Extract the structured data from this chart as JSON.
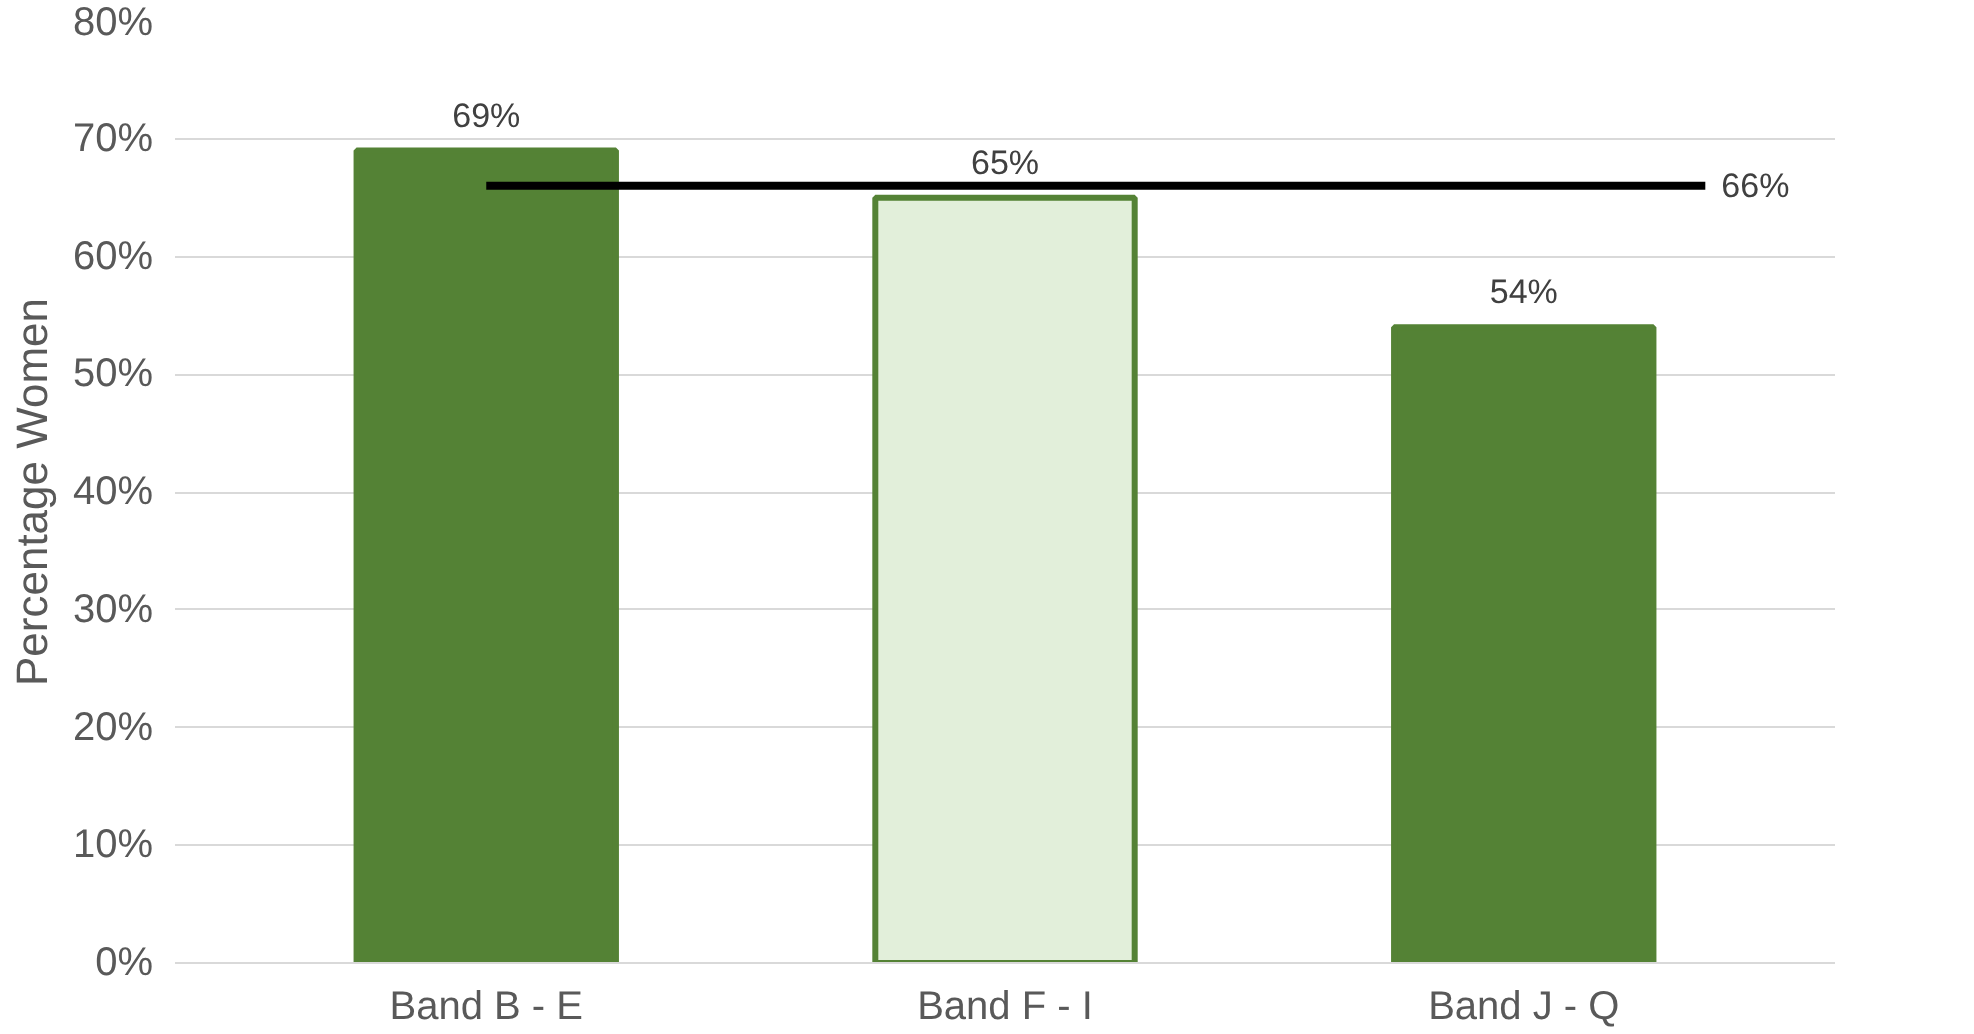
{
  "chart_data": {
    "type": "bar",
    "ylabel": "Percentage Women",
    "categories": [
      "Band B - E",
      "Band F - I",
      "Band J - Q"
    ],
    "values": [
      69,
      65,
      54
    ],
    "value_labels": [
      "69%",
      "65%",
      "54%"
    ],
    "colors": [
      "#548235",
      "#e2efda",
      "#548235"
    ],
    "ylim": [
      0,
      80
    ],
    "yticks": [
      {
        "value": 0,
        "label": "0%"
      },
      {
        "value": 10,
        "label": "10%"
      },
      {
        "value": 20,
        "label": "20%"
      },
      {
        "value": 30,
        "label": "30%"
      },
      {
        "value": 40,
        "label": "40%"
      },
      {
        "value": 50,
        "label": "50%"
      },
      {
        "value": 60,
        "label": "60%"
      },
      {
        "value": 70,
        "label": "70%"
      },
      {
        "value": 80,
        "label": "80%"
      }
    ],
    "grid": "y",
    "ref_lines": [
      {
        "axis": "y",
        "value": 66,
        "label": "66%",
        "color": "#000000"
      }
    ]
  }
}
